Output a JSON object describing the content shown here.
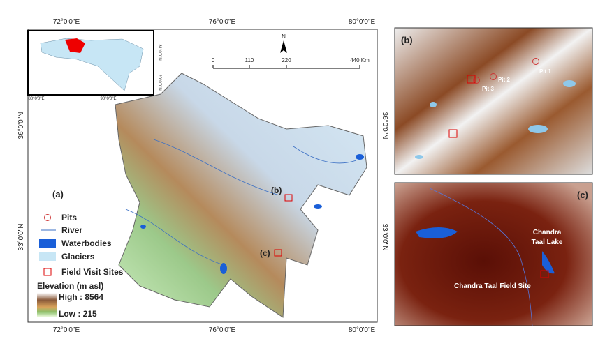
{
  "main_map": {
    "top_labels": [
      "72°0'0\"E",
      "76°0'0\"E",
      "80°0'0\"E"
    ],
    "bottom_labels": [
      "72°0'0\"E",
      "76°0'0\"E",
      "80°0'0\"E"
    ],
    "left_labels": [
      "36°0'0\"N",
      "33°0'0\"N"
    ],
    "right_labels": [
      "36°0'0\"N",
      "33°0'0\"N"
    ],
    "inset": {
      "lat_labels": [
        "31°0'0\"N",
        "20°0'0\"N"
      ],
      "lon_labels": [
        "80°0'0\"E",
        "90°0'0\"E"
      ]
    },
    "scale_bar": [
      "0",
      "110",
      "220",
      "440 Km"
    ],
    "north": "N",
    "panel_label": "(a)",
    "site_labels": [
      "(b)",
      "(c)"
    ]
  },
  "legend": {
    "items": [
      "Pits",
      "River",
      "Waterbodies",
      "Glaciers",
      "Field Visit Sites"
    ],
    "elevation_title": "Elevation (m asl)",
    "high": "High : 8564",
    "low": "Low : 215"
  },
  "panel_b": {
    "label": "(b)",
    "pits": [
      "Pit 1",
      "Pit 2",
      "Pit 3"
    ]
  },
  "panel_c": {
    "label": "(c)",
    "lake": [
      "Chandra",
      "Taal Lake"
    ],
    "site": "Chandra Taal Field Site"
  }
}
